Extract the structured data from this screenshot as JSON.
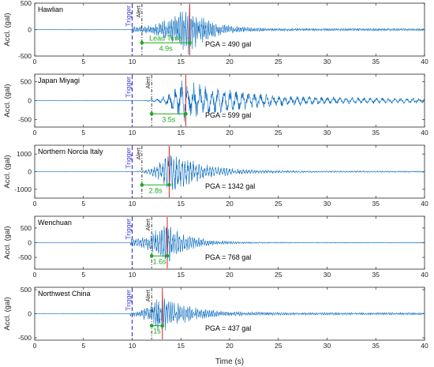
{
  "chart_data": {
    "type": "line",
    "xlabel": "Time (s)",
    "ylabel": "Accl. (gal)",
    "xlim": [
      0,
      40
    ],
    "xticks": [
      "0",
      "5",
      "10",
      "15",
      "20",
      "25",
      "30",
      "35",
      "40"
    ],
    "trigger_label": "Trigger",
    "alert_label": "Alert",
    "lead_time_label": "Lead Time",
    "colors": {
      "waveform": "#0b6cbf",
      "trigger": "#3a3acf",
      "alert": "#222222",
      "pga_line": "#e03030",
      "lead_time": "#1fa81f"
    },
    "panels": [
      {
        "name": "Hawlian",
        "pga_label": "PGA = 490 gal",
        "ylim": [
          -500,
          500
        ],
        "yticks": [
          "500",
          "0",
          "-500"
        ],
        "trigger_time": 10,
        "alert_time": 11.0,
        "pga_time": 15.9,
        "lead_time": "4.9s",
        "lead_time_y": -250,
        "show_lead_label": true,
        "wave": {
          "start": 10.0,
          "peak_time": 15.8,
          "rise": 0.6,
          "decay": 2.0,
          "amplitude": 490,
          "pre_amp": 60,
          "tail": 25,
          "freq": 5.5
        }
      },
      {
        "name": "Japan Miyagi",
        "pga_label": "PGA = 599 gal",
        "ylim": [
          -700,
          700
        ],
        "yticks": [
          "500",
          "0",
          "-500"
        ],
        "trigger_time": 10,
        "alert_time": 12.0,
        "pga_time": 15.5,
        "lead_time": "3.5s",
        "lead_time_y": -350,
        "show_lead_label": false,
        "wave": {
          "start": 11.5,
          "peak_time": 15.2,
          "rise": 2.5,
          "decay": 6.0,
          "amplitude": 599,
          "pre_amp": 20,
          "tail": 60,
          "freq": 1.6
        }
      },
      {
        "name": "Northern Norcia Italy",
        "pga_label": "PGA = 1342 gal",
        "ylim": [
          -1500,
          1500
        ],
        "yticks": [
          "1000",
          "0",
          "-1000"
        ],
        "trigger_time": 10,
        "alert_time": 11.0,
        "pga_time": 13.8,
        "lead_time": "2.8s",
        "lead_time_y": -750,
        "show_lead_label": false,
        "wave": {
          "start": 10.5,
          "peak_time": 14.0,
          "rise": 1.6,
          "decay": 3.0,
          "amplitude": 1342,
          "pre_amp": 40,
          "tail": 40,
          "freq": 3.5
        }
      },
      {
        "name": "Wenchuan",
        "pga_label": "PGA = 768 gal",
        "ylim": [
          -900,
          900
        ],
        "yticks": [
          "500",
          "0",
          "-500"
        ],
        "trigger_time": 10,
        "alert_time": 12.0,
        "pga_time": 13.6,
        "lead_time": "1.6s",
        "lead_time_y": -450,
        "show_lead_label": false,
        "wave": {
          "start": 9.8,
          "peak_time": 13.5,
          "rise": 2.2,
          "decay": 2.2,
          "amplitude": 768,
          "pre_amp": 150,
          "tail": 15,
          "freq": 4.5
        }
      },
      {
        "name": "Northwest China",
        "pga_label": "PGA = 437 gal",
        "ylim": [
          -550,
          550
        ],
        "yticks": [
          "500",
          "0",
          "-500"
        ],
        "trigger_time": 10,
        "alert_time": 12.0,
        "pga_time": 13.1,
        "lead_time": "1s",
        "lead_time_y": -250,
        "show_lead_label": false,
        "wave": {
          "start": 9.8,
          "peak_time": 12.8,
          "rise": 1.6,
          "decay": 2.8,
          "amplitude": 437,
          "pre_amp": 50,
          "tail": 25,
          "freq": 5.0
        }
      }
    ]
  }
}
